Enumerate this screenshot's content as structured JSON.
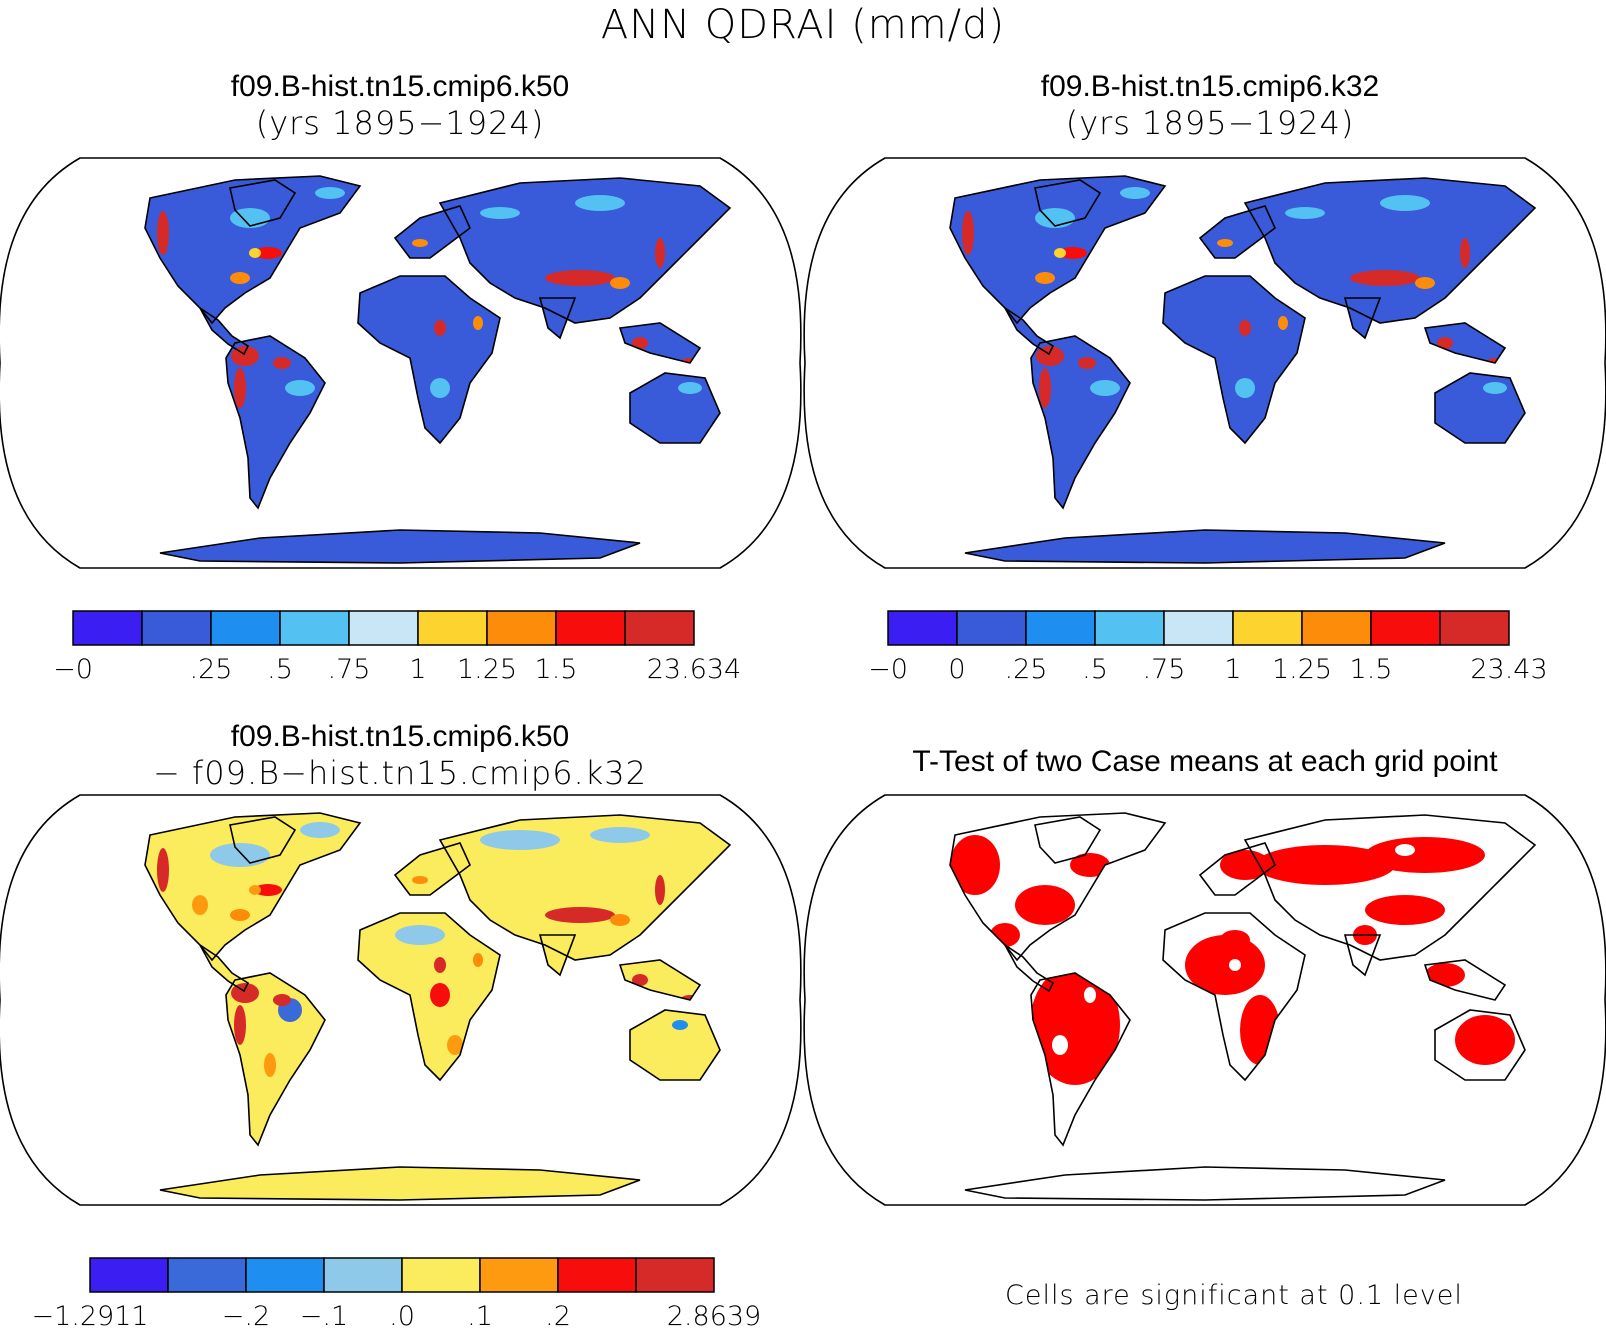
{
  "main_title": "ANN QDRAI (mm/d)",
  "panels": {
    "top_left": {
      "line1": "f09.B-hist.tn15.cmip6.k50",
      "line2": "(yrs 1895−1924)"
    },
    "top_right": {
      "line1": "f09.B-hist.tn15.cmip6.k32",
      "line2": "(yrs 1895−1924)"
    },
    "bottom_left": {
      "line1": "f09.B-hist.tn15.cmip6.k50",
      "line2": "− f09.B−hist.tn15.cmip6.k32"
    },
    "bottom_right": {
      "line1": "T-Test of two Case means at each grid point",
      "note": "Cells are significant at 0.1 level"
    }
  },
  "colorbars": {
    "top_left": {
      "colors": [
        "#3b1ef2",
        "#3a5bd9",
        "#1e8ef0",
        "#53c1f1",
        "#c8e6f6",
        "#fdd32f",
        "#fd8c0a",
        "#f70d0c",
        "#d62a28"
      ],
      "labels": [
        "−0",
        "",
        ".25",
        ".5",
        ".75",
        "1",
        "1.25",
        "1.5",
        "",
        "23.634"
      ]
    },
    "top_right": {
      "colors": [
        "#3b1ef2",
        "#3a5bd9",
        "#1e8ef0",
        "#53c1f1",
        "#c8e6f6",
        "#fdd32f",
        "#fd8c0a",
        "#f70d0c",
        "#d62a28"
      ],
      "labels": [
        "−0",
        "0",
        ".25",
        ".5",
        ".75",
        "1",
        "1.25",
        "1.5",
        "",
        "23.43"
      ]
    },
    "bottom_left": {
      "colors": [
        "#3b1ef2",
        "#3a6ad9",
        "#1e8ef0",
        "#8fc9ea",
        "#fbec5d",
        "#fd9a0f",
        "#f70d0c",
        "#d62a28"
      ],
      "labels": [
        "−1.2911",
        "",
        "−.2",
        "−.1",
        ".0",
        ".1",
        ".2",
        "",
        "2.8639"
      ]
    }
  },
  "colors": {
    "ocean": "#ffffff",
    "land_blue": "#3a5bd9",
    "land_yellow": "#fbec5d",
    "signif_red": "#ff0000"
  }
}
